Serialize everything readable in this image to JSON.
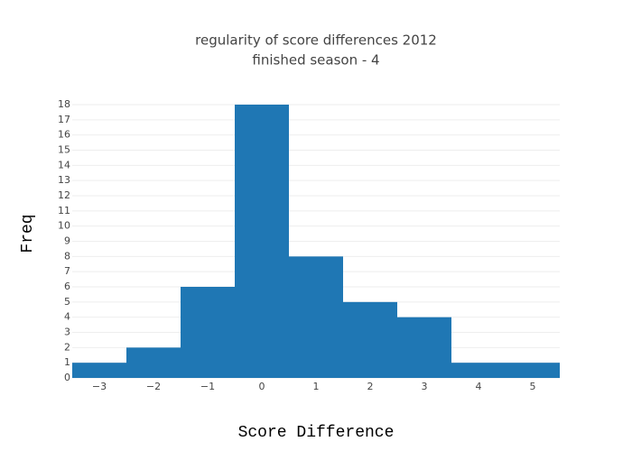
{
  "chart_data": {
    "type": "histogram",
    "title": "regularity of score differences 2012",
    "subtitle": "finished season - 4",
    "x_label": "Score Difference",
    "y_label": "Freq",
    "bins": [
      -3.5,
      -2.5,
      -1.5,
      -0.5,
      0.5,
      1.5,
      2.5,
      3.5,
      4.5,
      5.5
    ],
    "values": [
      1,
      2,
      6,
      18,
      8,
      5,
      4,
      1,
      1
    ],
    "color": "#1f77b4",
    "xlim": [
      -3.5,
      5.5
    ],
    "xticks": [
      {
        "value": -3,
        "label": "−3"
      },
      {
        "value": -2,
        "label": "−2"
      },
      {
        "value": -1,
        "label": "−1"
      },
      0,
      1,
      2,
      3,
      4,
      5
    ],
    "ylim": [
      0,
      18
    ],
    "yticks": [
      0,
      1,
      2,
      3,
      4,
      5,
      6,
      7,
      8,
      9,
      10,
      11,
      12,
      13,
      14,
      15,
      16,
      17,
      18
    ],
    "grid": true
  }
}
